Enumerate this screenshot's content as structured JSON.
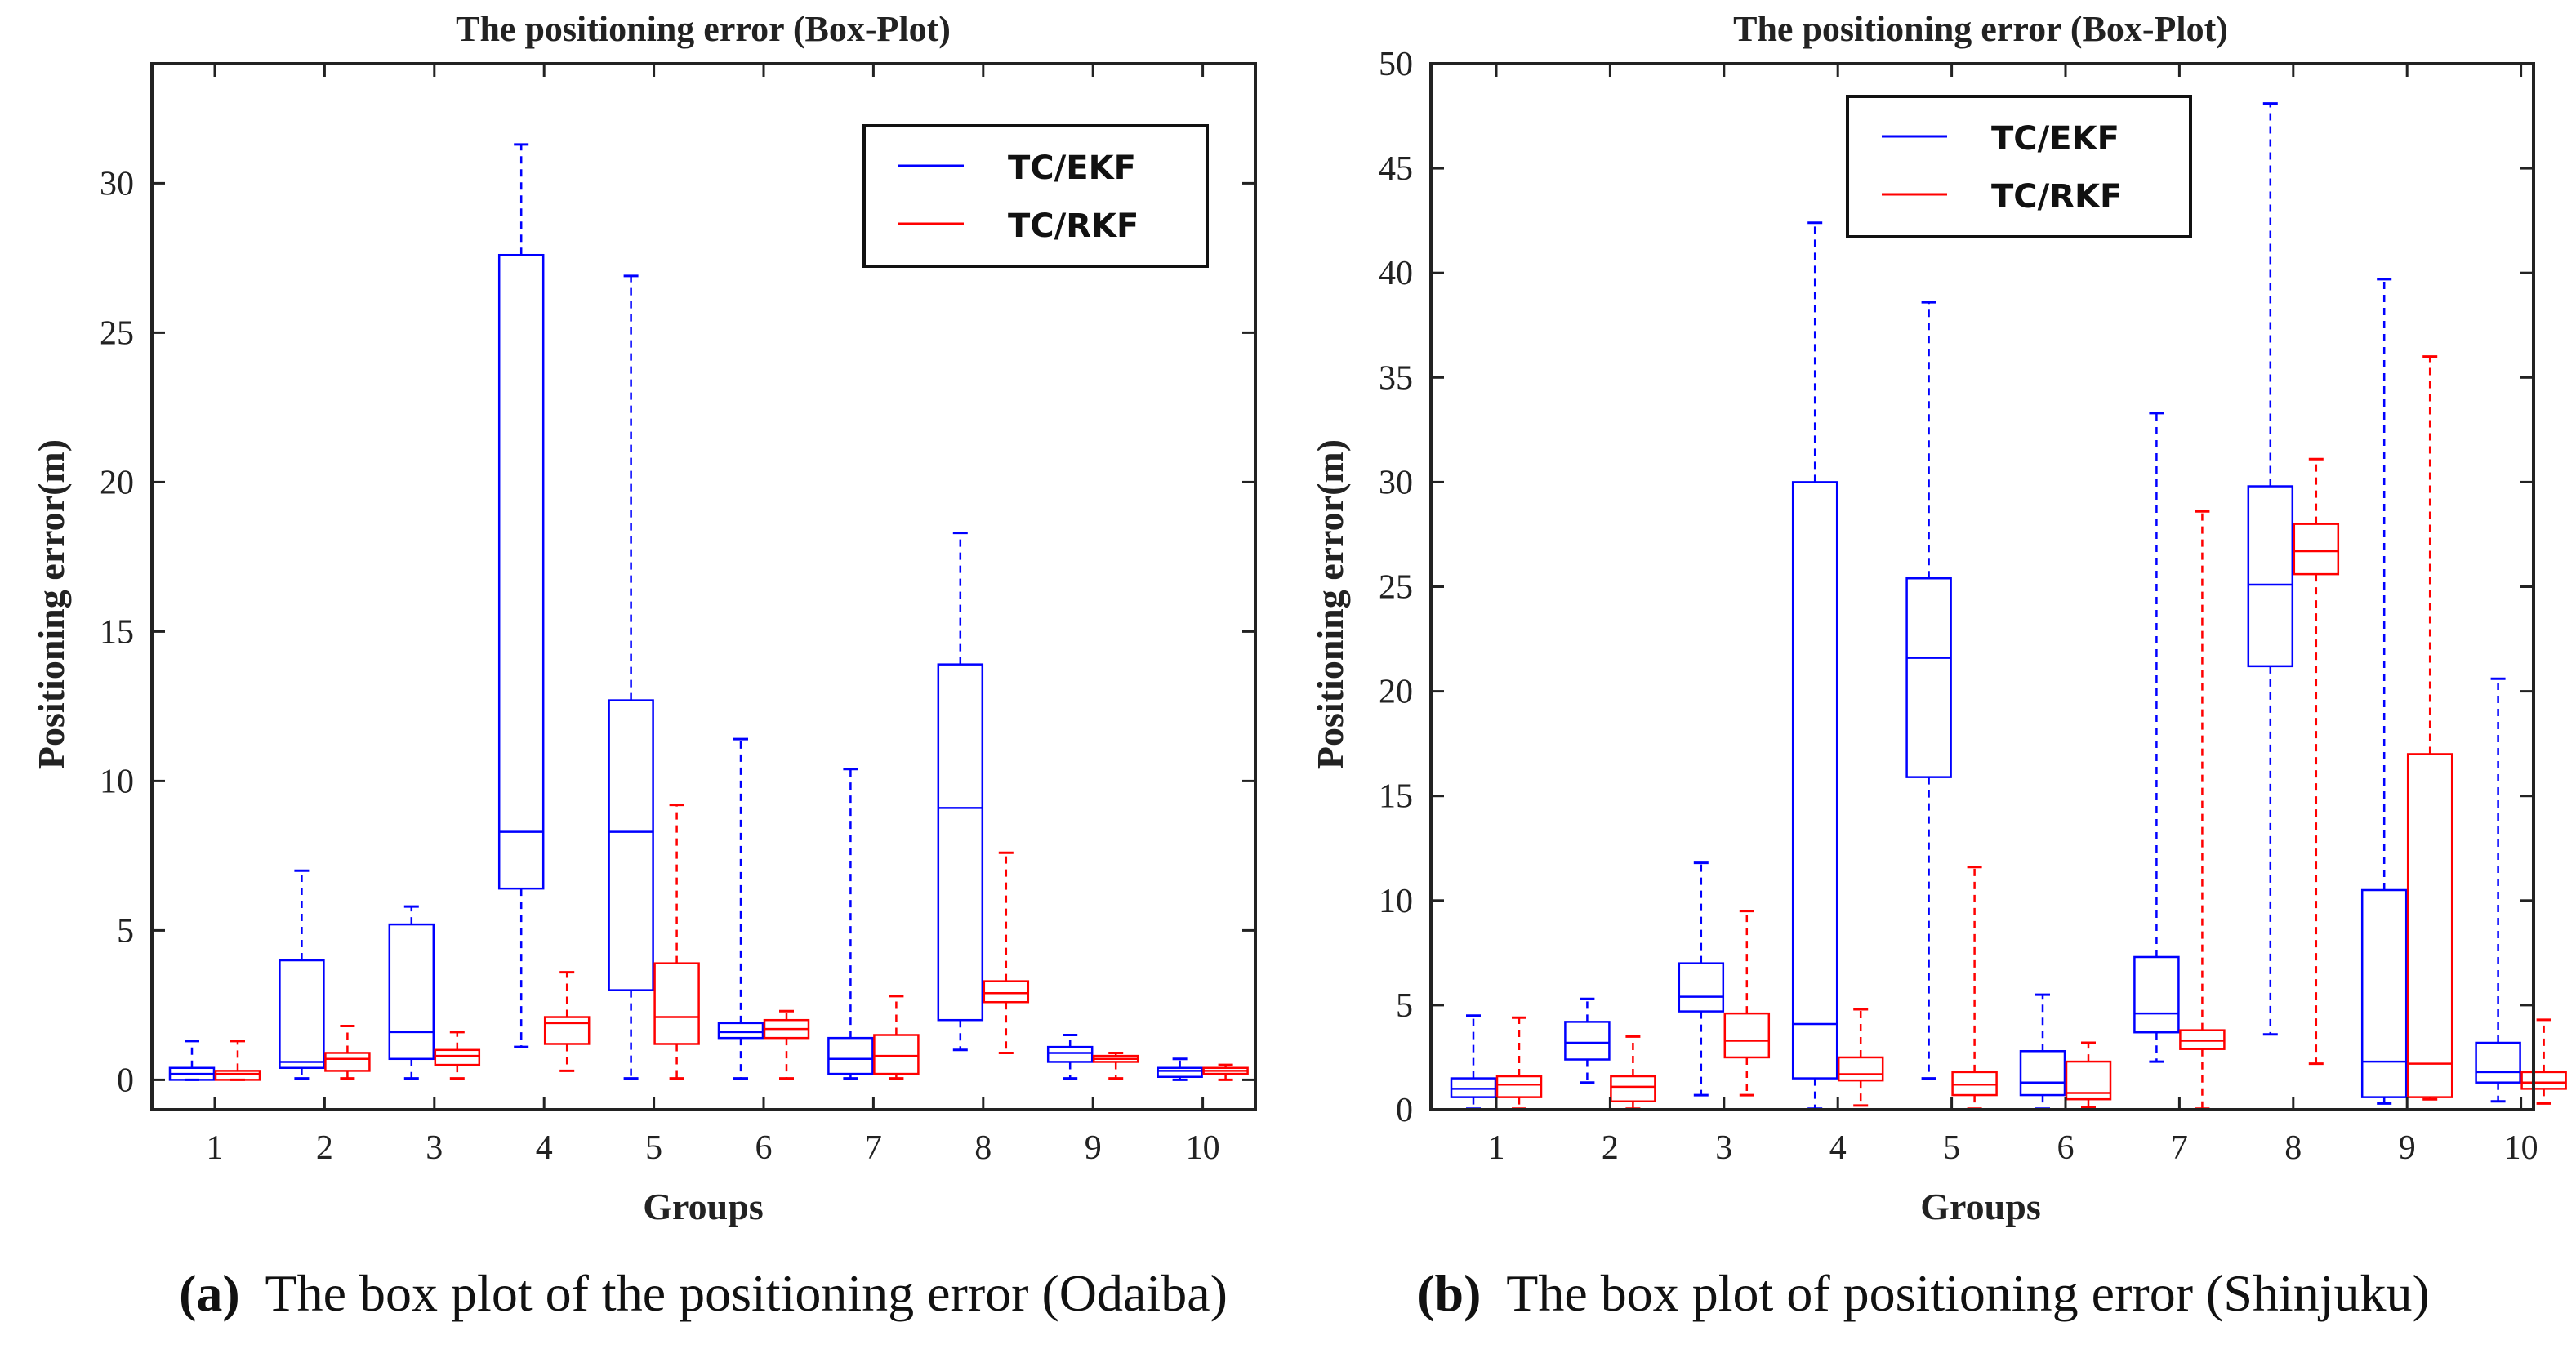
{
  "chart_data": [
    {
      "type": "box",
      "panel_letter": "(a)",
      "caption": "The box plot of the positioning error (Odaiba)",
      "title": "The positioning error (Box-Plot)",
      "xlabel": "Groups",
      "ylabel": "Positioning error(m)",
      "categories": [
        "1",
        "2",
        "3",
        "4",
        "5",
        "6",
        "7",
        "8",
        "9",
        "10"
      ],
      "ylim": [
        -1,
        34
      ],
      "yticks": [
        0,
        5,
        10,
        15,
        20,
        25,
        30
      ],
      "legend_position": "top-right",
      "series": [
        {
          "name": "TC/EKF",
          "color": "#0000ff",
          "boxes": [
            {
              "min": 0.0,
              "q1": 0.0,
              "median": 0.2,
              "q3": 0.4,
              "max": 1.3
            },
            {
              "min": 0.05,
              "q1": 0.4,
              "median": 0.6,
              "q3": 4.0,
              "max": 7.0
            },
            {
              "min": 0.05,
              "q1": 0.7,
              "median": 1.6,
              "q3": 5.2,
              "max": 5.8
            },
            {
              "min": 1.1,
              "q1": 6.4,
              "median": 8.3,
              "q3": 27.6,
              "max": 31.3
            },
            {
              "min": 0.05,
              "q1": 3.0,
              "median": 8.3,
              "q3": 12.7,
              "max": 26.9
            },
            {
              "min": 0.05,
              "q1": 1.4,
              "median": 1.6,
              "q3": 1.9,
              "max": 11.4
            },
            {
              "min": 0.05,
              "q1": 0.2,
              "median": 0.7,
              "q3": 1.4,
              "max": 10.4
            },
            {
              "min": 1.0,
              "q1": 2.0,
              "median": 9.1,
              "q3": 13.9,
              "max": 18.3
            },
            {
              "min": 0.05,
              "q1": 0.6,
              "median": 0.9,
              "q3": 1.1,
              "max": 1.5
            },
            {
              "min": 0.0,
              "q1": 0.1,
              "median": 0.3,
              "q3": 0.4,
              "max": 0.7
            }
          ]
        },
        {
          "name": "TC/RKF",
          "color": "#ff0000",
          "boxes": [
            {
              "min": 0.0,
              "q1": 0.0,
              "median": 0.2,
              "q3": 0.3,
              "max": 1.3
            },
            {
              "min": 0.05,
              "q1": 0.3,
              "median": 0.7,
              "q3": 0.9,
              "max": 1.8
            },
            {
              "min": 0.05,
              "q1": 0.5,
              "median": 0.8,
              "q3": 1.0,
              "max": 1.6
            },
            {
              "min": 0.3,
              "q1": 1.2,
              "median": 1.9,
              "q3": 2.1,
              "max": 3.6
            },
            {
              "min": 0.05,
              "q1": 1.2,
              "median": 2.1,
              "q3": 3.9,
              "max": 9.2
            },
            {
              "min": 0.05,
              "q1": 1.4,
              "median": 1.7,
              "q3": 2.0,
              "max": 2.3
            },
            {
              "min": 0.05,
              "q1": 0.2,
              "median": 0.8,
              "q3": 1.5,
              "max": 2.8
            },
            {
              "min": 0.9,
              "q1": 2.6,
              "median": 2.9,
              "q3": 3.3,
              "max": 7.6
            },
            {
              "min": 0.05,
              "q1": 0.6,
              "median": 0.7,
              "q3": 0.8,
              "max": 0.9
            },
            {
              "min": 0.0,
              "q1": 0.2,
              "median": 0.3,
              "q3": 0.4,
              "max": 0.5
            }
          ]
        }
      ]
    },
    {
      "type": "box",
      "panel_letter": "(b)",
      "caption": "The box plot of positioning error (Shinjuku)",
      "title": "The positioning error (Box-Plot)",
      "xlabel": "Groups",
      "ylabel": "Positioning error(m)",
      "categories": [
        "1",
        "2",
        "3",
        "4",
        "5",
        "6",
        "7",
        "8",
        "9",
        "10"
      ],
      "ylim": [
        0,
        50
      ],
      "yticks": [
        0,
        5,
        10,
        15,
        20,
        25,
        30,
        35,
        40,
        45,
        50
      ],
      "legend_position": "top-left",
      "series": [
        {
          "name": "TC/EKF",
          "color": "#0000ff",
          "boxes": [
            {
              "min": 0.05,
              "q1": 0.6,
              "median": 1.0,
              "q3": 1.5,
              "max": 4.5
            },
            {
              "min": 1.3,
              "q1": 2.4,
              "median": 3.2,
              "q3": 4.2,
              "max": 5.3
            },
            {
              "min": 0.7,
              "q1": 4.7,
              "median": 5.4,
              "q3": 7.0,
              "max": 11.8
            },
            {
              "min": 0.05,
              "q1": 1.5,
              "median": 4.1,
              "q3": 30.0,
              "max": 42.4
            },
            {
              "min": 1.5,
              "q1": 15.9,
              "median": 21.6,
              "q3": 25.4,
              "max": 38.6
            },
            {
              "min": 0.05,
              "q1": 0.7,
              "median": 1.3,
              "q3": 2.8,
              "max": 5.5
            },
            {
              "min": 2.3,
              "q1": 3.7,
              "median": 4.6,
              "q3": 7.3,
              "max": 33.3
            },
            {
              "min": 3.6,
              "q1": 21.2,
              "median": 25.1,
              "q3": 29.8,
              "max": 48.1
            },
            {
              "min": 0.3,
              "q1": 0.6,
              "median": 2.3,
              "q3": 10.5,
              "max": 39.7
            },
            {
              "min": 0.4,
              "q1": 1.3,
              "median": 1.8,
              "q3": 3.2,
              "max": 20.6
            }
          ]
        },
        {
          "name": "TC/RKF",
          "color": "#ff0000",
          "boxes": [
            {
              "min": 0.05,
              "q1": 0.6,
              "median": 1.2,
              "q3": 1.6,
              "max": 4.4
            },
            {
              "min": 0.05,
              "q1": 0.4,
              "median": 1.1,
              "q3": 1.6,
              "max": 3.5
            },
            {
              "min": 0.7,
              "q1": 2.5,
              "median": 3.3,
              "q3": 4.6,
              "max": 9.5
            },
            {
              "min": 0.2,
              "q1": 1.4,
              "median": 1.7,
              "q3": 2.5,
              "max": 4.8
            },
            {
              "min": 0.05,
              "q1": 0.7,
              "median": 1.2,
              "q3": 1.8,
              "max": 11.6
            },
            {
              "min": 0.1,
              "q1": 0.5,
              "median": 0.8,
              "q3": 2.3,
              "max": 3.2
            },
            {
              "min": 0.05,
              "q1": 2.9,
              "median": 3.3,
              "q3": 3.8,
              "max": 28.6
            },
            {
              "min": 2.2,
              "q1": 25.6,
              "median": 26.7,
              "q3": 28.0,
              "max": 31.1
            },
            {
              "min": 0.5,
              "q1": 0.6,
              "median": 2.2,
              "q3": 17.0,
              "max": 36.0
            },
            {
              "min": 0.3,
              "q1": 1.0,
              "median": 1.3,
              "q3": 1.8,
              "max": 4.3
            }
          ]
        }
      ]
    }
  ]
}
